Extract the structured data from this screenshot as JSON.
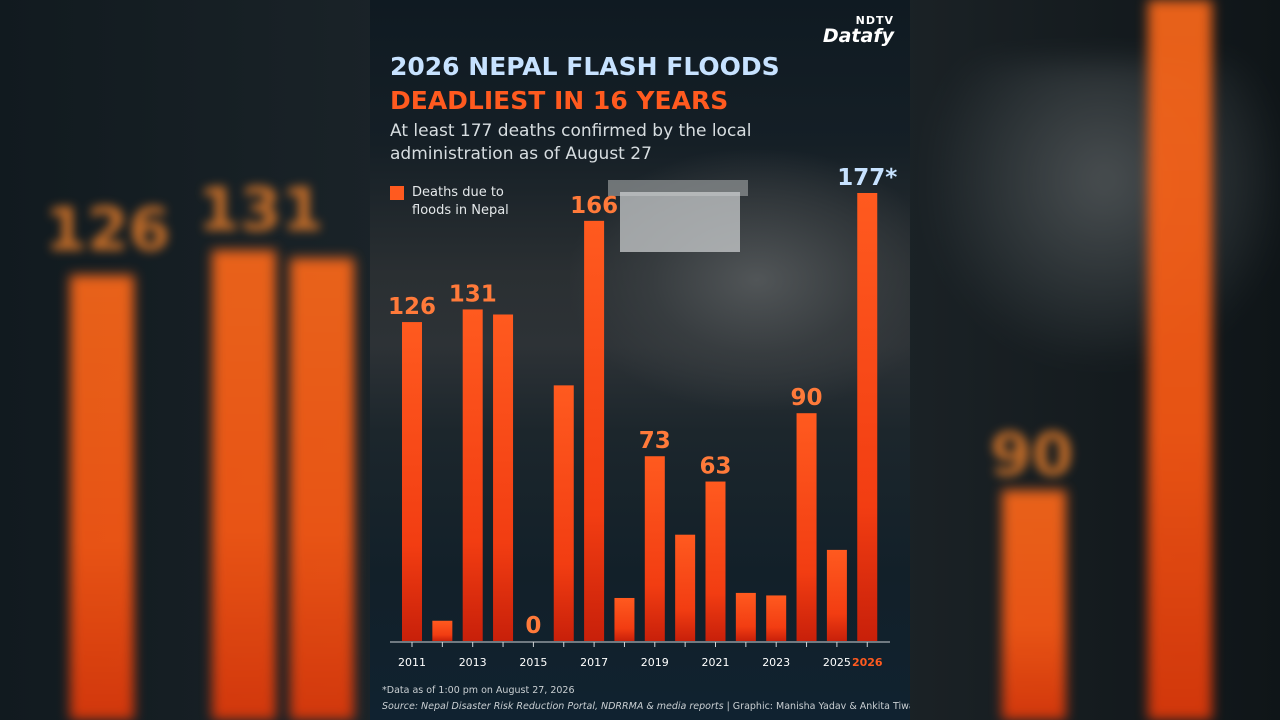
{
  "brand": {
    "top": "NDTV",
    "main": "Datafy"
  },
  "title_line1": "2026 NEPAL FLASH FLOODS",
  "title_line2": "DEADLIEST IN 16 YEARS",
  "subtitle": "At least 177 deaths confirmed by the local administration as of August 27",
  "legend_label": "Deaths due to floods in Nepal",
  "footnote": "*Data as of 1:00 pm on August 27, 2026",
  "source_italic": "Source: Nepal Disaster Risk Reduction Portal, NDRRMA & media reports",
  "source_plain": " | Graphic: Manisha Yadav & Ankita Tiwari",
  "colors": {
    "bar": "#ff5a1f",
    "bar_dark": "#c8200a",
    "title_blue": "#c7e2ff",
    "accent": "#ff5a1f",
    "highlight_year": "#ff5a1f"
  },
  "chart_data": {
    "type": "bar",
    "categories": [
      "2011",
      "2012",
      "2013",
      "2014",
      "2015",
      "2016",
      "2017",
      "2018",
      "2019",
      "2020",
      "2021",
      "2022",
      "2023",
      "2024",
      "2025",
      "2026"
    ],
    "values": [
      126,
      8,
      131,
      129,
      0,
      101,
      166,
      17,
      73,
      42,
      63,
      19,
      18,
      90,
      36,
      177
    ],
    "tick_labels": [
      "2011",
      "",
      "2013",
      "",
      "2015",
      "",
      "2017",
      "",
      "2019",
      "",
      "2021",
      "",
      "2023",
      "",
      "2025",
      "2026"
    ],
    "data_labels": [
      "126",
      "",
      "131",
      "",
      "0",
      "",
      "166",
      "",
      "73",
      "",
      "63",
      "",
      "",
      "90",
      "",
      "177*"
    ],
    "highlight_category": "2026",
    "ylim": [
      0,
      177
    ],
    "grid": false,
    "legend_position": "top-left"
  }
}
